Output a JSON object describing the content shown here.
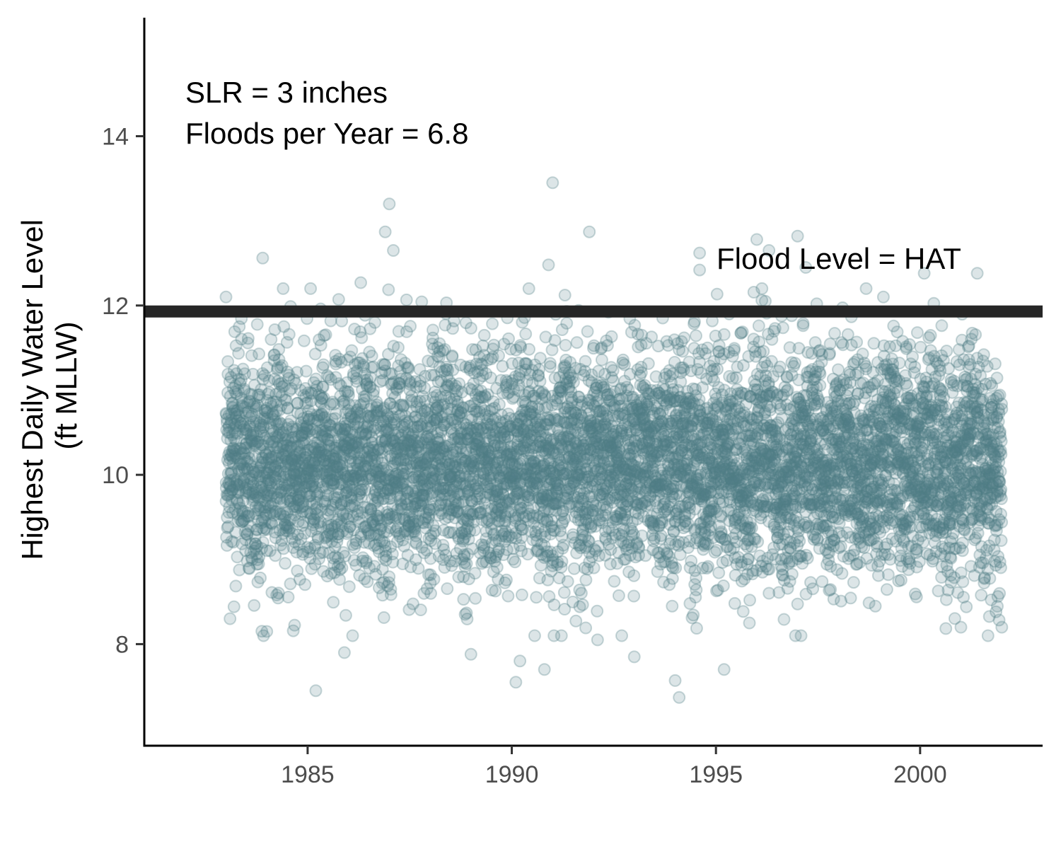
{
  "chart_data": {
    "type": "scatter",
    "title": "",
    "xlabel": "",
    "ylabel": [
      "Highest Daily Water Level",
      "(ft MLLW)"
    ],
    "xlim": [
      1981,
      2003
    ],
    "ylim": [
      6.8,
      15.4
    ],
    "x_ticks": [
      1985,
      1990,
      1995,
      2000
    ],
    "y_ticks": [
      8,
      10,
      12,
      14
    ],
    "x_tick_labels": [
      "1985",
      "1990",
      "1995",
      "2000"
    ],
    "y_tick_labels": [
      "8",
      "10",
      "12",
      "14"
    ],
    "grid": false,
    "legend": "none",
    "point_color": "#4e7f85",
    "point_opacity": 0.2,
    "hline": {
      "y": 11.93,
      "label": "Flood Level = HAT",
      "color": "#262626"
    },
    "annotations": [
      "SLR = 3 inches",
      "Floods per Year = 6.8"
    ],
    "series": [
      {
        "x_range": [
          1983.0,
          2002.0
        ],
        "daily_count": 6940,
        "typical_range": [
          8.5,
          12.2
        ],
        "values": [
          {
            "x": 1983.0,
            "y": 12.1
          },
          {
            "x": 1983.1,
            "y": 8.3
          },
          {
            "x": 1983.9,
            "y": 12.56
          },
          {
            "x": 1984.0,
            "y": 8.15
          },
          {
            "x": 1984.4,
            "y": 12.2
          },
          {
            "x": 1985.2,
            "y": 7.45
          },
          {
            "x": 1985.9,
            "y": 7.9
          },
          {
            "x": 1986.3,
            "y": 12.27
          },
          {
            "x": 1986.9,
            "y": 12.87
          },
          {
            "x": 1987.0,
            "y": 13.2
          },
          {
            "x": 1987.1,
            "y": 12.65
          },
          {
            "x": 1989.0,
            "y": 7.88
          },
          {
            "x": 1990.1,
            "y": 7.55
          },
          {
            "x": 1990.2,
            "y": 7.8
          },
          {
            "x": 1990.8,
            "y": 7.7
          },
          {
            "x": 1991.0,
            "y": 13.45
          },
          {
            "x": 1990.9,
            "y": 12.48
          },
          {
            "x": 1991.9,
            "y": 12.87
          },
          {
            "x": 1992.1,
            "y": 8.05
          },
          {
            "x": 1993.0,
            "y": 7.85
          },
          {
            "x": 1994.0,
            "y": 7.57
          },
          {
            "x": 1994.1,
            "y": 7.37
          },
          {
            "x": 1994.6,
            "y": 12.62
          },
          {
            "x": 1994.6,
            "y": 12.42
          },
          {
            "x": 1996.0,
            "y": 12.78
          },
          {
            "x": 1996.3,
            "y": 12.65
          },
          {
            "x": 1995.2,
            "y": 7.7
          },
          {
            "x": 1997.0,
            "y": 12.82
          },
          {
            "x": 1997.2,
            "y": 12.45
          },
          {
            "x": 1999.1,
            "y": 12.1
          },
          {
            "x": 2000.1,
            "y": 12.38
          },
          {
            "x": 2001.4,
            "y": 12.38
          },
          {
            "x": 2001.0,
            "y": 8.2
          },
          {
            "x": 2002.0,
            "y": 8.2
          }
        ]
      }
    ]
  }
}
